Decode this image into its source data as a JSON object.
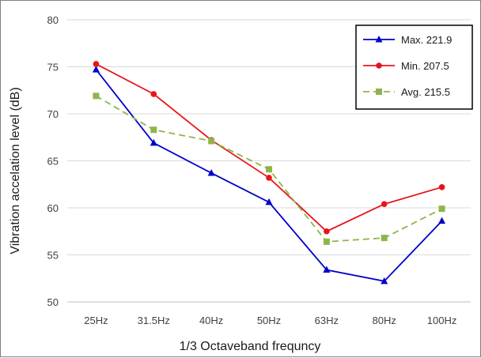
{
  "chart_data": {
    "type": "line",
    "categories": [
      "25Hz",
      "31.5Hz",
      "40Hz",
      "50Hz",
      "63Hz",
      "80Hz",
      "100Hz"
    ],
    "series": [
      {
        "name": "Max. 221.9",
        "color": "#0000cc",
        "marker": "triangle",
        "dash": "solid",
        "values": [
          74.7,
          66.9,
          63.7,
          60.6,
          53.4,
          52.2,
          58.6
        ]
      },
      {
        "name": "Min. 207.5",
        "color": "#e8141c",
        "marker": "circle",
        "dash": "solid",
        "values": [
          75.3,
          72.1,
          67.2,
          63.2,
          57.5,
          60.4,
          62.2
        ]
      },
      {
        "name": "Avg. 215.5",
        "color": "#8fb54a",
        "marker": "square",
        "dash": "dashed",
        "values": [
          71.9,
          68.3,
          67.1,
          64.1,
          56.4,
          56.8,
          59.9
        ]
      }
    ],
    "xlabel": "1/3 Octaveband frequncy",
    "ylabel": "Vibration accelation level (dB)",
    "ylim": [
      50,
      80
    ],
    "yticks": [
      50,
      55,
      60,
      65,
      70,
      75,
      80
    ],
    "grid": true,
    "legend": "top-right"
  }
}
